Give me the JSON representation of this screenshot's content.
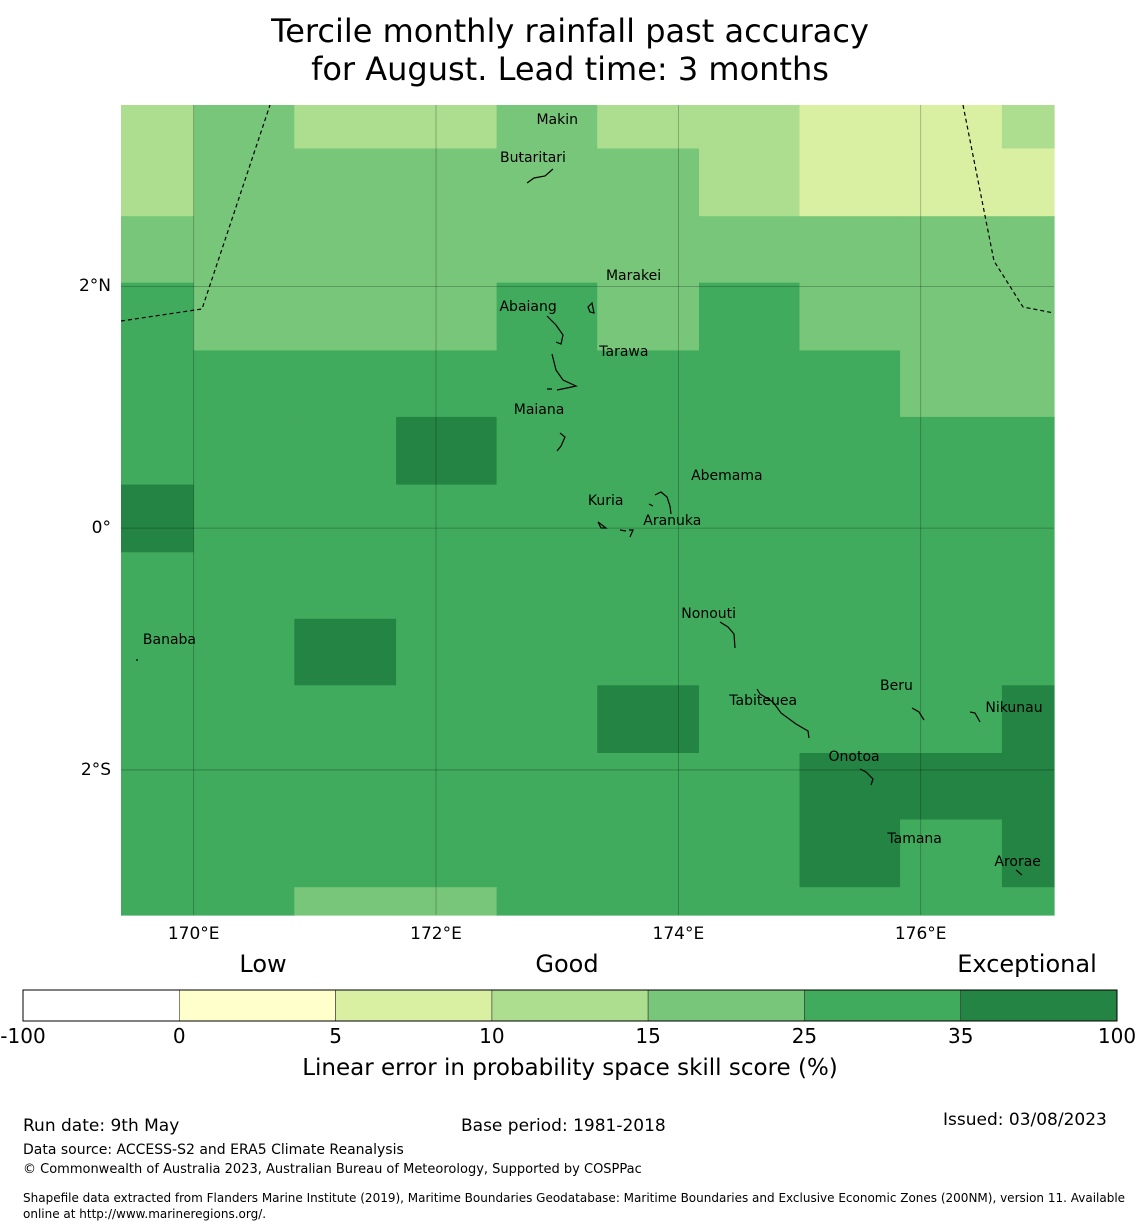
{
  "title": {
    "line1": "Tercile monthly rainfall past accuracy",
    "line2": "for August. Lead time: 3 months"
  },
  "map": {
    "lon_range": [
      169.4,
      177.1
    ],
    "lat_range": [
      -3.2,
      3.5
    ],
    "lon_ticks": [
      {
        "value": 170,
        "label": "170°E"
      },
      {
        "value": 172,
        "label": "172°E"
      },
      {
        "value": 174,
        "label": "174°E"
      },
      {
        "value": 176,
        "label": "176°E"
      }
    ],
    "lat_ticks": [
      {
        "value": 2,
        "label": "2°N"
      },
      {
        "value": 0,
        "label": "0°"
      },
      {
        "value": -2,
        "label": "2°S"
      }
    ],
    "skill_grid": {
      "lon_edges": [
        169.4,
        170.0,
        170.83,
        171.67,
        172.5,
        173.33,
        174.17,
        175.0,
        175.83,
        176.67,
        177.1
      ],
      "lat_edges": [
        3.5,
        3.14,
        2.58,
        2.03,
        1.47,
        0.92,
        0.36,
        -0.2,
        -0.75,
        -1.3,
        -1.86,
        -2.41,
        -2.97,
        -3.2
      ],
      "classes": [
        [
          3,
          4,
          3,
          3,
          4,
          3,
          3,
          2,
          2,
          3
        ],
        [
          3,
          4,
          4,
          4,
          4,
          4,
          3,
          2,
          2,
          2
        ],
        [
          4,
          4,
          4,
          4,
          4,
          4,
          4,
          4,
          4,
          4
        ],
        [
          5,
          4,
          4,
          4,
          5,
          4,
          5,
          4,
          4,
          4
        ],
        [
          5,
          5,
          5,
          5,
          5,
          5,
          5,
          5,
          4,
          4
        ],
        [
          5,
          5,
          5,
          6,
          5,
          5,
          5,
          5,
          5,
          5
        ],
        [
          6,
          5,
          5,
          5,
          5,
          5,
          5,
          5,
          5,
          5
        ],
        [
          5,
          5,
          5,
          5,
          5,
          5,
          5,
          5,
          5,
          5
        ],
        [
          5,
          5,
          6,
          5,
          5,
          5,
          5,
          5,
          5,
          5
        ],
        [
          5,
          5,
          5,
          5,
          5,
          6,
          5,
          5,
          5,
          6
        ],
        [
          5,
          5,
          5,
          5,
          5,
          5,
          5,
          6,
          6,
          6
        ],
        [
          5,
          5,
          5,
          5,
          5,
          5,
          5,
          6,
          5,
          6
        ],
        [
          5,
          5,
          4,
          4,
          5,
          5,
          5,
          5,
          5,
          5
        ]
      ]
    },
    "islands": [
      {
        "name": "Makin",
        "lon": 173.0,
        "lat": 3.37
      },
      {
        "name": "Butaritari",
        "lon": 172.8,
        "lat": 3.05
      },
      {
        "name": "Marakei",
        "lon": 173.63,
        "lat": 2.08
      },
      {
        "name": "Abaiang",
        "lon": 172.76,
        "lat": 1.82
      },
      {
        "name": "Tarawa",
        "lon": 173.55,
        "lat": 1.45
      },
      {
        "name": "Maiana",
        "lon": 172.85,
        "lat": 0.97
      },
      {
        "name": "Abemama",
        "lon": 174.4,
        "lat": 0.42
      },
      {
        "name": "Kuria",
        "lon": 173.4,
        "lat": 0.22
      },
      {
        "name": "Aranuka",
        "lon": 173.95,
        "lat": 0.05
      },
      {
        "name": "Banaba",
        "lon": 169.8,
        "lat": -0.93
      },
      {
        "name": "Nonouti",
        "lon": 174.25,
        "lat": -0.72
      },
      {
        "name": "Beru",
        "lon": 175.8,
        "lat": -1.31
      },
      {
        "name": "Tabiteuea",
        "lon": 174.7,
        "lat": -1.44
      },
      {
        "name": "Nikunau",
        "lon": 176.77,
        "lat": -1.5
      },
      {
        "name": "Onotoa",
        "lon": 175.45,
        "lat": -1.9
      },
      {
        "name": "Tamana",
        "lon": 175.95,
        "lat": -2.58
      },
      {
        "name": "Arorae",
        "lon": 176.8,
        "lat": -2.77
      }
    ]
  },
  "legend": {
    "categories": [
      "Low",
      "Good",
      "Exceptional"
    ],
    "boundaries": [
      "-100",
      "0",
      "5",
      "10",
      "15",
      "25",
      "35",
      "100"
    ],
    "colors": [
      "#ffffff",
      "#ffffcc",
      "#d9f0a3",
      "#addd8e",
      "#78c679",
      "#41ab5d",
      "#238443"
    ],
    "axis_label": "Linear error in probability space skill score (%)"
  },
  "footer": {
    "run_date": "Run date: 9th May",
    "base_period": "Base period: 1981-2018",
    "issued": "Issued: 03/08/2023",
    "data_source": "Data source: ACCESS-S2 and ERA5 Climate Reanalysis",
    "copyright": "© Commonwealth of Australia 2023, Australian Bureau of Meteorology, Supported by COSPPac",
    "shapefile_line1": "Shapefile data extracted from Flanders Marine Institute (2019), Maritime Boundaries Geodatabase: Maritime Boundaries and Exclusive Economic Zones (200NM), version 11. Available",
    "shapefile_line2": "online at http://www.marineregions.org/."
  }
}
